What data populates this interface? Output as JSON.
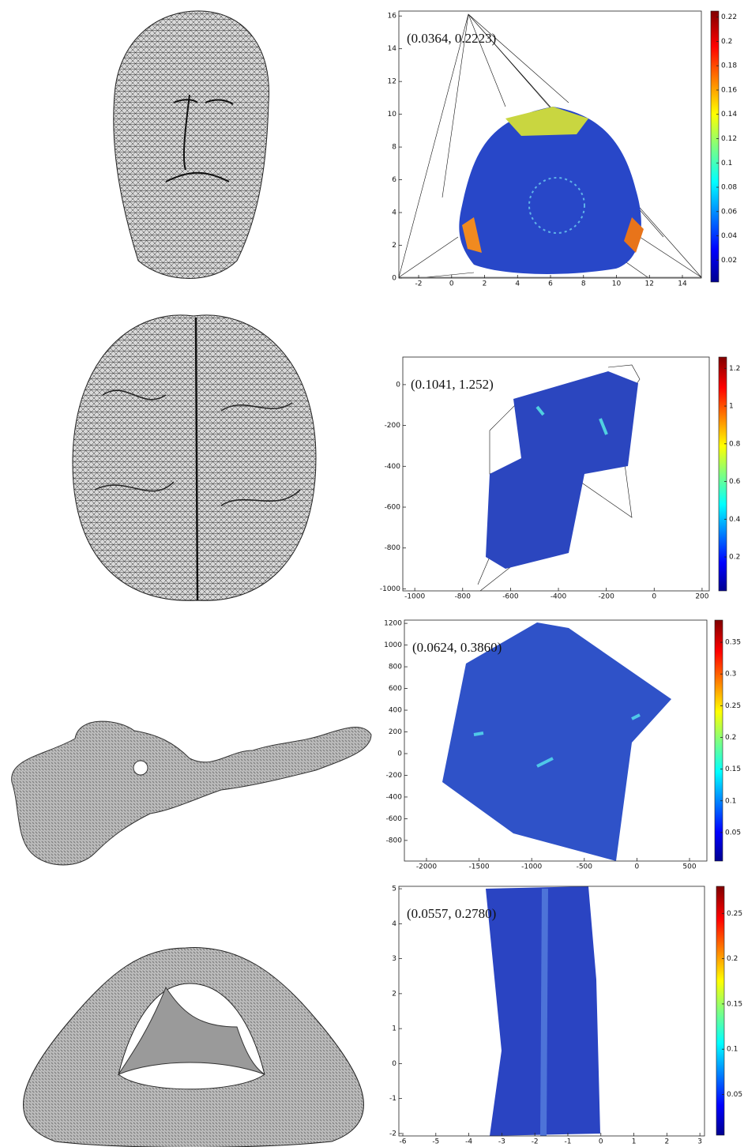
{
  "figure": {
    "panels": [
      {
        "annotation": "(0.0364, 0.2223)",
        "xlim": [
          -3.2,
          15.15
        ],
        "ylim": [
          0,
          16.3
        ],
        "xticks": [
          -2,
          0,
          2,
          4,
          6,
          8,
          10,
          12,
          14
        ],
        "yticks": [
          0,
          2,
          4,
          6,
          8,
          10,
          12,
          14,
          16
        ],
        "clim": [
          0.002,
          0.225
        ],
        "cticks": [
          0.02,
          0.04,
          0.06,
          0.08,
          0.1,
          0.12,
          0.14,
          0.16,
          0.18,
          0.2,
          0.22
        ]
      },
      {
        "annotation": "(0.1041, 1.252)",
        "xlim": [
          -1050,
          230
        ],
        "ylim": [
          -1010,
          135
        ],
        "xticks": [
          -1000,
          -800,
          -600,
          -400,
          -200,
          0,
          200
        ],
        "yticks": [
          -1000,
          -800,
          -600,
          -400,
          -200,
          0
        ],
        "clim": [
          0.02,
          1.26
        ],
        "cticks": [
          0.2,
          0.4,
          0.6,
          0.8,
          1,
          1.2
        ]
      },
      {
        "annotation": "(0.0624, 0.3860)",
        "xlim": [
          -2210,
          665
        ],
        "ylim": [
          -990,
          1230
        ],
        "xticks": [
          -2000,
          -1500,
          -1000,
          -500,
          0,
          500
        ],
        "yticks": [
          -800,
          -600,
          -400,
          -200,
          0,
          200,
          400,
          600,
          800,
          1000,
          1200
        ],
        "clim": [
          0.005,
          0.385
        ],
        "cticks": [
          0.05,
          0.1,
          0.15,
          0.2,
          0.25,
          0.3,
          0.35
        ]
      },
      {
        "annotation": "(0.0557, 0.2780)",
        "xlim": [
          -6.12,
          3.14
        ],
        "ylim": [
          -2.07,
          5.07
        ],
        "xticks": [
          -6,
          -5,
          -4,
          -3,
          -2,
          -1,
          0,
          1,
          2,
          3
        ],
        "yticks": [
          -2,
          -1,
          0,
          1,
          2,
          3,
          4,
          5
        ],
        "clim": [
          0.005,
          0.28
        ],
        "cticks": [
          0.05,
          0.1,
          0.15,
          0.2,
          0.25
        ]
      }
    ]
  }
}
